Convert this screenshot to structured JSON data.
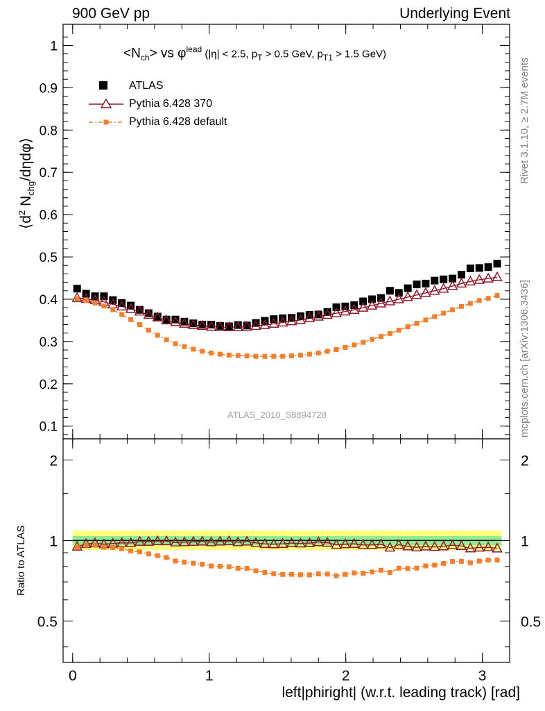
{
  "header": {
    "left": "900 GeV pp",
    "right": "Underlying Event"
  },
  "title_parts": {
    "n": "<N",
    "n_sub": "ch",
    "vs": "> vs φ",
    "lead_sup": "lead",
    "cut1": " (|η| < 2.5, p",
    "cut1_sub": "T",
    "cut2": " > 0.5 GeV, p",
    "cut2_sub": "T1",
    "cut3": " > 1.5 GeV)"
  },
  "ylabel_parts": {
    "open": "⟨d",
    "sup2": "2",
    "n": " N",
    "sub": "chg",
    "rest": "/dηdφ⟩"
  },
  "ratio_ylabel": "Ratio to ATLAS",
  "xlabel": "left|phiright| (w.r.t. leading track) [rad]",
  "side_text": {
    "rivet": "Rivet 3.1.10, ≥ 2.7M events",
    "mcplots": "mcplots.cern.ch [arXiv:1306.3436]"
  },
  "watermark": "ATLAS_2010_S8894728",
  "colors": {
    "atlas": "#000000",
    "pythia370": "#8b1a2a",
    "pythiadefault": "#f08030",
    "band_inner": "#90ee90",
    "band_outer": "#ffff80"
  },
  "chart_data": {
    "type": "scatter",
    "x_range": [
      -0.07,
      3.2
    ],
    "main": {
      "ylim": [
        0.07,
        1.05
      ],
      "yticks": [
        0.1,
        0.2,
        0.3,
        0.4,
        0.5,
        0.6,
        0.7,
        0.8,
        0.9,
        1
      ],
      "ytick_labels": [
        "0.1",
        "0.2",
        "0.3",
        "0.4",
        "0.5",
        "0.6",
        "0.7",
        "0.8",
        "0.9",
        "1"
      ]
    },
    "ratio": {
      "ylim": [
        0.35,
        2.4
      ],
      "log": true,
      "yticks": [
        0.5,
        1,
        2
      ],
      "ytick_labels": [
        "0.5",
        "1",
        "2"
      ],
      "band_inner": [
        0.96,
        1.04
      ],
      "band_outer": [
        0.92,
        1.09
      ]
    },
    "xticks": [
      0,
      1,
      2,
      3
    ],
    "xtick_labels": [
      "0",
      "1",
      "2",
      "3"
    ],
    "x": [
      0.0327,
      0.0982,
      0.1636,
      0.2291,
      0.2945,
      0.36,
      0.4254,
      0.4909,
      0.5563,
      0.6218,
      0.6872,
      0.7527,
      0.8181,
      0.8836,
      0.949,
      1.0145,
      1.0799,
      1.1454,
      1.2108,
      1.2763,
      1.3417,
      1.4072,
      1.4726,
      1.5381,
      1.6035,
      1.669,
      1.7344,
      1.7999,
      1.8653,
      1.9308,
      1.9962,
      2.0617,
      2.1271,
      2.1926,
      2.258,
      2.3235,
      2.3889,
      2.4544,
      2.5198,
      2.5853,
      2.6507,
      2.7162,
      2.7816,
      2.8471,
      2.9125,
      2.978,
      3.0434,
      3.1089
    ],
    "series": [
      {
        "name": "ATLAS",
        "marker": "square",
        "values": [
          0.425,
          0.413,
          0.407,
          0.407,
          0.398,
          0.391,
          0.385,
          0.375,
          0.367,
          0.359,
          0.352,
          0.352,
          0.347,
          0.343,
          0.34,
          0.34,
          0.337,
          0.336,
          0.339,
          0.338,
          0.344,
          0.349,
          0.353,
          0.355,
          0.356,
          0.36,
          0.363,
          0.364,
          0.37,
          0.381,
          0.383,
          0.386,
          0.395,
          0.4,
          0.403,
          0.42,
          0.415,
          0.426,
          0.435,
          0.437,
          0.444,
          0.447,
          0.449,
          0.458,
          0.473,
          0.474,
          0.476,
          0.484
        ]
      },
      {
        "name": "Pythia 6.428 370",
        "marker": "triangle-open",
        "values": [
          0.403,
          0.401,
          0.398,
          0.394,
          0.388,
          0.383,
          0.377,
          0.371,
          0.363,
          0.357,
          0.35,
          0.346,
          0.342,
          0.339,
          0.337,
          0.335,
          0.334,
          0.334,
          0.334,
          0.335,
          0.337,
          0.339,
          0.342,
          0.345,
          0.348,
          0.351,
          0.355,
          0.359,
          0.363,
          0.367,
          0.371,
          0.375,
          0.38,
          0.385,
          0.39,
          0.395,
          0.4,
          0.405,
          0.41,
          0.415,
          0.42,
          0.425,
          0.431,
          0.437,
          0.442,
          0.446,
          0.449,
          0.452
        ]
      },
      {
        "name": "Pythia 6.428 default",
        "marker": "square-small",
        "values": [
          0.401,
          0.397,
          0.391,
          0.384,
          0.375,
          0.364,
          0.352,
          0.34,
          0.327,
          0.315,
          0.304,
          0.295,
          0.288,
          0.282,
          0.277,
          0.273,
          0.27,
          0.268,
          0.267,
          0.266,
          0.265,
          0.265,
          0.265,
          0.265,
          0.266,
          0.268,
          0.27,
          0.273,
          0.277,
          0.281,
          0.286,
          0.292,
          0.298,
          0.305,
          0.312,
          0.319,
          0.327,
          0.335,
          0.343,
          0.351,
          0.359,
          0.367,
          0.375,
          0.383,
          0.39,
          0.397,
          0.402,
          0.409
        ]
      }
    ]
  }
}
